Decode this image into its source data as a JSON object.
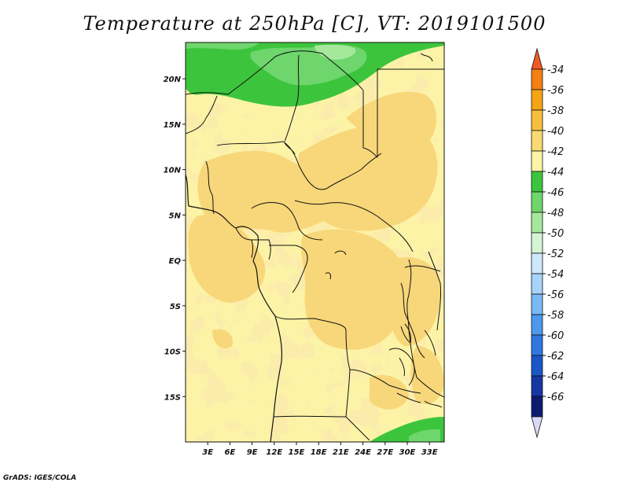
{
  "title": "Temperature at 250hPa [C], VT: 2019101500",
  "credit": "GrADS: IGES/COLA",
  "chart_data": {
    "type": "heatmap",
    "title": "Temperature at 250hPa [C], VT: 2019101500",
    "variable": "Temperature at 250hPa",
    "units": "C",
    "valid_time": "2019101500",
    "xlim": [
      0,
      35
    ],
    "ylim": [
      -20,
      24
    ],
    "x_ticks": [
      {
        "value": 3,
        "label": "3E"
      },
      {
        "value": 6,
        "label": "6E"
      },
      {
        "value": 9,
        "label": "9E"
      },
      {
        "value": 12,
        "label": "12E"
      },
      {
        "value": 15,
        "label": "15E"
      },
      {
        "value": 18,
        "label": "18E"
      },
      {
        "value": 21,
        "label": "21E"
      },
      {
        "value": 24,
        "label": "24E"
      },
      {
        "value": 27,
        "label": "27E"
      },
      {
        "value": 30,
        "label": "30E"
      },
      {
        "value": 33,
        "label": "33E"
      }
    ],
    "y_ticks": [
      {
        "value": 20,
        "label": "20N"
      },
      {
        "value": 15,
        "label": "15N"
      },
      {
        "value": 10,
        "label": "10N"
      },
      {
        "value": 5,
        "label": "5N"
      },
      {
        "value": 0,
        "label": "EQ"
      },
      {
        "value": -5,
        "label": "5S"
      },
      {
        "value": -10,
        "label": "10S"
      },
      {
        "value": -15,
        "label": "15S"
      }
    ],
    "colorbar": {
      "orientation": "vertical",
      "position": "right",
      "levels": [
        -34,
        -36,
        -38,
        -40,
        -42,
        -44,
        -46,
        -48,
        -50,
        -52,
        -54,
        -56,
        -58,
        -60,
        -62,
        -64,
        -66
      ],
      "colors": [
        "#f05a23",
        "#f57f10",
        "#f6a414",
        "#f8bf3a",
        "#f9da70",
        "#fcf3a7",
        "#3cc53c",
        "#6ed66c",
        "#a5e89c",
        "#d4f5d4",
        "#cde7fb",
        "#a7d3f9",
        "#79b9f5",
        "#4b98ec",
        "#2f78e0",
        "#1b56c8",
        "#1636a4",
        "#0c1a72",
        "#dadaf8"
      ]
    },
    "dominant_range": "-42 to -38 over most of the domain; -46 to -44 in the north (above ~18N) and far south-east corner"
  }
}
